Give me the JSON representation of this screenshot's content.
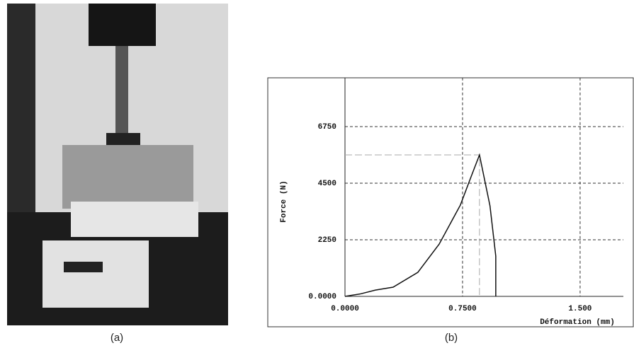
{
  "panel_a_caption": "(a)",
  "panel_b_caption": "(b)",
  "chart_data": {
    "type": "line",
    "xlabel": "Déformation (mm)",
    "ylabel": "Force (N)",
    "x": [
      0,
      0.1,
      0.194,
      0.307,
      0.465,
      0.601,
      0.736,
      0.804,
      0.858,
      0.925,
      0.962,
      0.962
    ],
    "series": [
      {
        "name": "Force",
        "color": "#111",
        "values": [
          0,
          100,
          250,
          365,
          956,
          2080,
          3630,
          4750,
          5625,
          3600,
          1600,
          0
        ]
      }
    ],
    "xlim": [
      0,
      1.776
    ],
    "ylim": [
      0,
      8700
    ],
    "xticks": [
      {
        "value": 0,
        "label": "0.0000"
      },
      {
        "value": 0.75,
        "label": "0.7500"
      },
      {
        "value": 1.5,
        "label": "1.500"
      }
    ],
    "yticks": [
      {
        "value": 0,
        "label": "0.0000"
      },
      2250,
      4500,
      6750
    ],
    "grid": true
  }
}
